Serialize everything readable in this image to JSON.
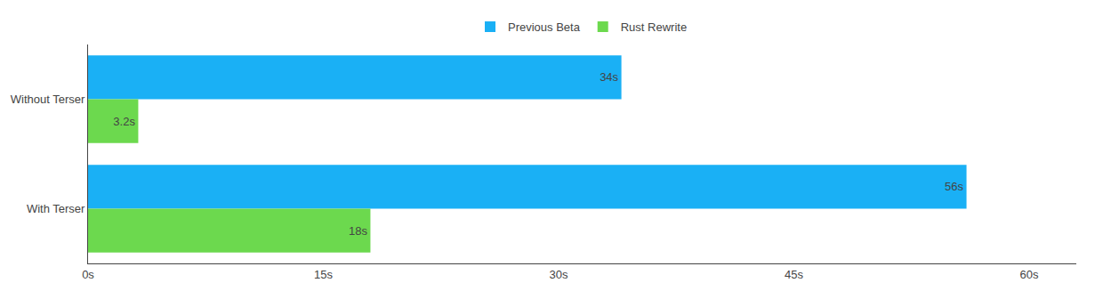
{
  "chart_data": {
    "type": "bar",
    "orientation": "horizontal",
    "categories": [
      "Without Terser",
      "With Terser"
    ],
    "series": [
      {
        "name": "Previous Beta",
        "color": "#1ab0f5",
        "values": [
          34,
          56
        ],
        "value_labels": [
          "34s",
          "56s"
        ]
      },
      {
        "name": "Rust Rewrite",
        "color": "#6cd94e",
        "values": [
          3.2,
          18
        ],
        "value_labels": [
          "3.2s",
          "18s"
        ]
      }
    ],
    "xlim": [
      0,
      63
    ],
    "xticks": [
      {
        "value": 0,
        "label": "0s"
      },
      {
        "value": 15,
        "label": "15s"
      },
      {
        "value": 30,
        "label": "30s"
      },
      {
        "value": 45,
        "label": "45s"
      },
      {
        "value": 60,
        "label": "60s"
      }
    ],
    "grid": false,
    "legend": "top",
    "data_labels": true
  }
}
